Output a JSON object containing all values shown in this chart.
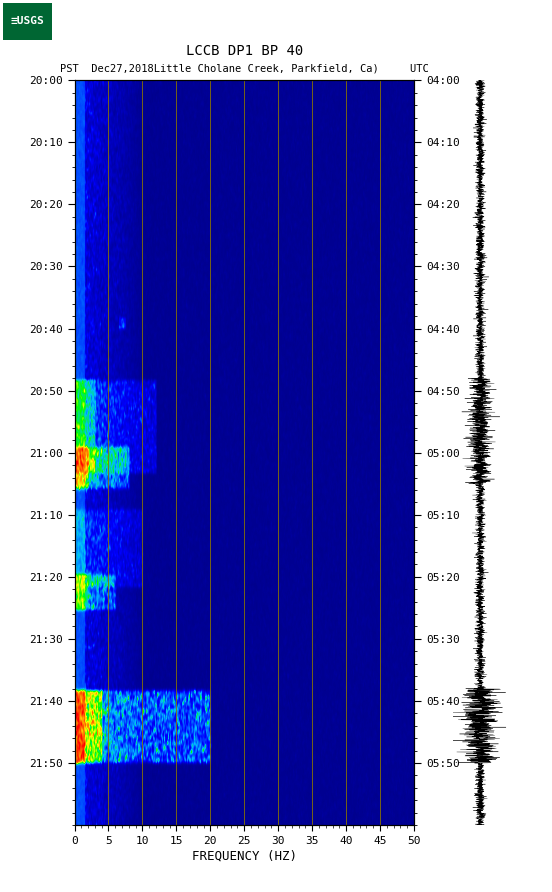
{
  "title_line1": "LCCB DP1 BP 40",
  "title_line2": "PST  Dec27,2018Little Cholane Creek, Parkfield, Ca)     UTC",
  "left_time_labels": [
    "20:00",
    "20:10",
    "20:20",
    "20:30",
    "20:40",
    "20:50",
    "21:00",
    "21:10",
    "21:20",
    "21:30",
    "21:40",
    "21:50"
  ],
  "right_time_labels": [
    "04:00",
    "04:10",
    "04:20",
    "04:30",
    "04:40",
    "04:50",
    "05:00",
    "05:10",
    "05:20",
    "05:30",
    "05:40",
    "05:50"
  ],
  "freq_ticks": [
    0,
    5,
    10,
    15,
    20,
    25,
    30,
    35,
    40,
    45,
    50
  ],
  "freq_label": "FREQUENCY (HZ)",
  "vline_freqs": [
    5,
    10,
    15,
    20,
    25,
    30,
    35,
    40,
    45
  ],
  "background_color": "#ffffff",
  "fig_width": 5.52,
  "fig_height": 8.92,
  "dpi": 100
}
